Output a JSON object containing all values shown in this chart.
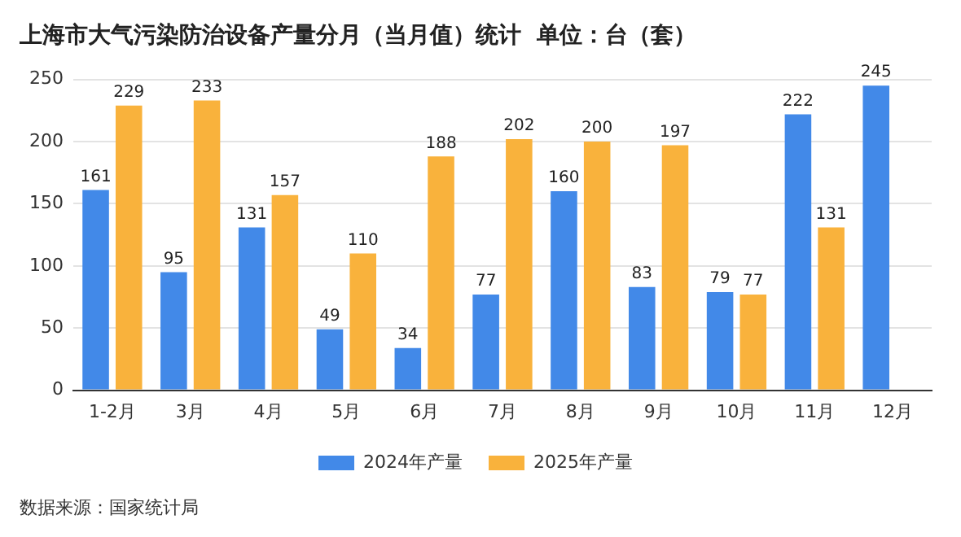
{
  "chart_data": {
    "type": "bar",
    "title": "上海市大气污染防治设备产量分月（当月值）统计  单位：台（套）",
    "categories": [
      "1-2月",
      "3月",
      "4月",
      "5月",
      "6月",
      "7月",
      "8月",
      "9月",
      "10月",
      "11月",
      "12月"
    ],
    "series": [
      {
        "name": "2024年产量",
        "color": "#4289e8",
        "values": [
          161,
          95,
          131,
          49,
          34,
          77,
          160,
          83,
          79,
          222,
          245
        ]
      },
      {
        "name": "2025年产量",
        "color": "#f9b23c",
        "values": [
          229,
          233,
          157,
          110,
          188,
          202,
          200,
          197,
          77,
          131,
          null
        ]
      }
    ],
    "ylim": [
      0,
      250
    ],
    "yticks": [
      0,
      50,
      100,
      150,
      200,
      250
    ],
    "grid": "y",
    "legend": "bottom",
    "data_labels": true,
    "annotations": [
      "数据来源：国家统计局"
    ]
  }
}
